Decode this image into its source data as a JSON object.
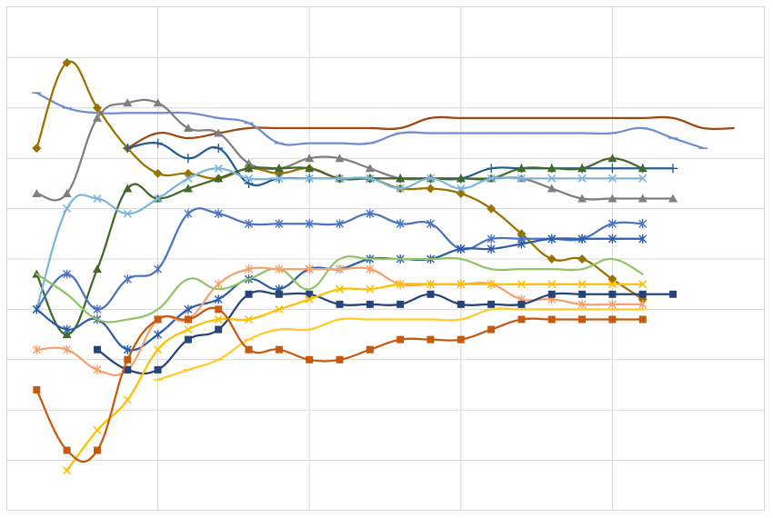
{
  "chart_data": {
    "type": "line",
    "title": "",
    "xlabel": "",
    "ylabel": "",
    "grid": true,
    "legend": "none",
    "x": [
      1,
      2,
      3,
      4,
      5,
      6,
      7,
      8,
      9,
      10,
      11,
      12,
      13,
      14,
      15,
      16,
      17,
      18,
      19,
      20,
      21,
      22,
      23,
      24,
      25
    ],
    "xlim": [
      0,
      25
    ],
    "ylim": [
      0,
      10
    ],
    "series": [
      {
        "marker": "none",
        "color": "#9E480E",
        "values": [
          null,
          null,
          null,
          7.2,
          7.5,
          7.4,
          7.5,
          7.6,
          7.6,
          7.6,
          7.6,
          7.6,
          7.6,
          7.8,
          7.8,
          7.8,
          7.8,
          7.8,
          7.8,
          7.8,
          7.8,
          7.8,
          7.6,
          7.6,
          null
        ]
      },
      {
        "marker": "dash",
        "color": "#6F8FCF",
        "values": [
          8.3,
          8.0,
          7.9,
          7.9,
          7.9,
          7.9,
          7.8,
          7.7,
          7.3,
          7.3,
          7.3,
          7.3,
          7.5,
          7.5,
          7.5,
          7.5,
          7.5,
          7.5,
          7.5,
          7.5,
          7.6,
          7.4,
          7.2,
          null,
          null
        ]
      },
      {
        "marker": "triangle",
        "color": "#7F7F7F",
        "values": [
          6.3,
          6.3,
          7.8,
          8.1,
          8.1,
          7.6,
          7.5,
          6.9,
          6.8,
          7.0,
          7.0,
          6.8,
          6.6,
          6.6,
          6.6,
          6.6,
          6.6,
          6.4,
          6.2,
          6.2,
          6.2,
          6.2,
          null,
          null,
          null
        ]
      },
      {
        "marker": "diamond",
        "color": "#997300",
        "values": [
          7.2,
          8.9,
          8.0,
          7.2,
          6.7,
          6.7,
          6.6,
          6.8,
          6.7,
          6.8,
          6.6,
          6.6,
          6.4,
          6.4,
          6.3,
          6.0,
          5.5,
          5.0,
          5.0,
          4.6,
          4.2,
          null,
          null,
          null,
          null
        ]
      },
      {
        "marker": "plus",
        "color": "#255E91",
        "values": [
          null,
          null,
          null,
          7.2,
          7.3,
          7.0,
          7.2,
          6.5,
          6.6,
          6.6,
          6.6,
          6.6,
          6.6,
          6.6,
          6.6,
          6.8,
          6.8,
          6.8,
          6.8,
          6.8,
          6.8,
          6.8,
          null,
          null,
          null
        ]
      },
      {
        "marker": "triangle",
        "color": "#43682B",
        "values": [
          4.7,
          3.5,
          4.8,
          6.4,
          6.2,
          6.4,
          6.6,
          6.8,
          6.8,
          6.8,
          6.6,
          6.6,
          6.6,
          6.6,
          6.6,
          6.6,
          6.8,
          6.8,
          6.8,
          7.0,
          6.8,
          null,
          null,
          null,
          null
        ]
      },
      {
        "marker": "x",
        "color": "#7EB6DB",
        "values": [
          4.0,
          6.0,
          6.2,
          5.9,
          6.2,
          6.6,
          6.8,
          6.6,
          6.6,
          6.6,
          6.6,
          6.6,
          6.4,
          6.6,
          6.4,
          6.6,
          6.6,
          6.6,
          6.6,
          6.6,
          6.6,
          null,
          null,
          null,
          null
        ]
      },
      {
        "marker": "star",
        "color": "#4A73C0",
        "values": [
          4.0,
          4.7,
          4.0,
          4.6,
          4.8,
          5.9,
          5.9,
          5.7,
          5.7,
          5.7,
          5.7,
          5.9,
          5.7,
          5.7,
          5.2,
          5.4,
          5.4,
          5.4,
          5.4,
          5.7,
          5.7,
          null,
          null,
          null,
          null
        ]
      },
      {
        "marker": "star",
        "color": "#2E5EA8",
        "values": [
          4.0,
          3.6,
          3.8,
          3.2,
          3.5,
          4.0,
          4.2,
          4.6,
          4.4,
          4.8,
          4.8,
          5.0,
          5.0,
          5.0,
          5.2,
          5.2,
          5.3,
          5.4,
          5.4,
          5.4,
          5.4,
          null,
          null,
          null,
          null
        ]
      },
      {
        "marker": "none",
        "color": "#92C46B",
        "values": [
          4.7,
          4.3,
          3.8,
          3.8,
          4.0,
          4.6,
          4.4,
          4.6,
          4.8,
          4.4,
          5.0,
          5.0,
          5.0,
          5.0,
          5.0,
          4.8,
          4.8,
          4.8,
          4.8,
          5.0,
          4.7,
          null,
          null,
          null,
          null
        ]
      },
      {
        "marker": "star",
        "color": "#F4A26E",
        "values": [
          3.2,
          3.2,
          2.8,
          2.8,
          3.8,
          3.8,
          4.5,
          4.8,
          4.8,
          4.8,
          4.8,
          4.8,
          4.5,
          4.5,
          4.5,
          4.5,
          4.2,
          4.2,
          4.1,
          4.1,
          4.1,
          null,
          null,
          null,
          null
        ]
      },
      {
        "marker": "square",
        "color": "#264478",
        "values": [
          null,
          null,
          3.2,
          2.8,
          2.8,
          3.4,
          3.6,
          4.3,
          4.3,
          4.3,
          4.1,
          4.1,
          4.1,
          4.3,
          4.1,
          4.1,
          4.1,
          4.3,
          4.3,
          4.3,
          4.3,
          4.3,
          null,
          null,
          null
        ]
      },
      {
        "marker": "x",
        "color": "#FFC000",
        "values": [
          null,
          0.8,
          1.6,
          2.2,
          3.2,
          3.6,
          3.8,
          3.8,
          4.0,
          4.2,
          4.4,
          4.4,
          4.5,
          4.5,
          4.5,
          4.5,
          4.5,
          4.5,
          4.5,
          4.5,
          4.5,
          null,
          null,
          null,
          null
        ]
      },
      {
        "marker": "dash",
        "color": "#FFCB2F",
        "values": [
          null,
          null,
          null,
          null,
          2.6,
          2.8,
          3.0,
          3.4,
          3.6,
          3.6,
          3.8,
          3.8,
          3.8,
          3.8,
          3.8,
          4.0,
          4.0,
          4.0,
          4.0,
          4.0,
          4.0,
          null,
          null,
          null,
          null
        ]
      },
      {
        "marker": "square",
        "color": "#C55A11",
        "values": [
          2.4,
          1.2,
          1.2,
          3.0,
          3.8,
          3.8,
          4.0,
          3.2,
          3.2,
          3.0,
          3.0,
          3.2,
          3.4,
          3.4,
          3.4,
          3.6,
          3.8,
          3.8,
          3.8,
          3.8,
          3.8,
          null,
          null,
          null,
          null
        ]
      }
    ]
  }
}
